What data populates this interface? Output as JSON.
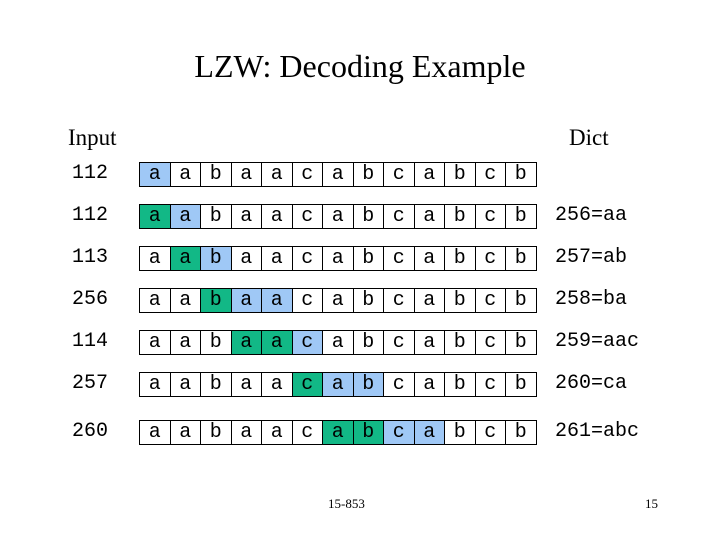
{
  "slide": {
    "title": "LZW: Decoding Example",
    "input_header": "Input",
    "dict_header": "Dict",
    "footer_course": "15-853",
    "footer_page": "15"
  },
  "colors": {
    "blue": "#9fc8f6",
    "green": "#12b886"
  },
  "sequence": [
    "a",
    "a",
    "b",
    "a",
    "a",
    "c",
    "a",
    "b",
    "c",
    "a",
    "b",
    "c",
    "b"
  ],
  "rows": [
    {
      "code": "112",
      "dict": "",
      "highlights": {
        "0": "blue"
      }
    },
    {
      "code": "112",
      "dict": "256=aa",
      "highlights": {
        "0": "green",
        "1": "blue"
      }
    },
    {
      "code": "113",
      "dict": "257=ab",
      "highlights": {
        "1": "green",
        "2": "blue"
      }
    },
    {
      "code": "256",
      "dict": "258=ba",
      "highlights": {
        "2": "green",
        "3": "blue",
        "4": "blue"
      }
    },
    {
      "code": "114",
      "dict": "259=aac",
      "highlights": {
        "3": "green",
        "4": "green",
        "5": "blue"
      }
    },
    {
      "code": "257",
      "dict": "260=ca",
      "highlights": {
        "5": "green",
        "6": "blue",
        "7": "blue"
      }
    },
    {
      "code": "260",
      "dict": "261=abc",
      "highlights": {
        "6": "green",
        "7": "green",
        "8": "blue",
        "9": "blue"
      }
    }
  ]
}
